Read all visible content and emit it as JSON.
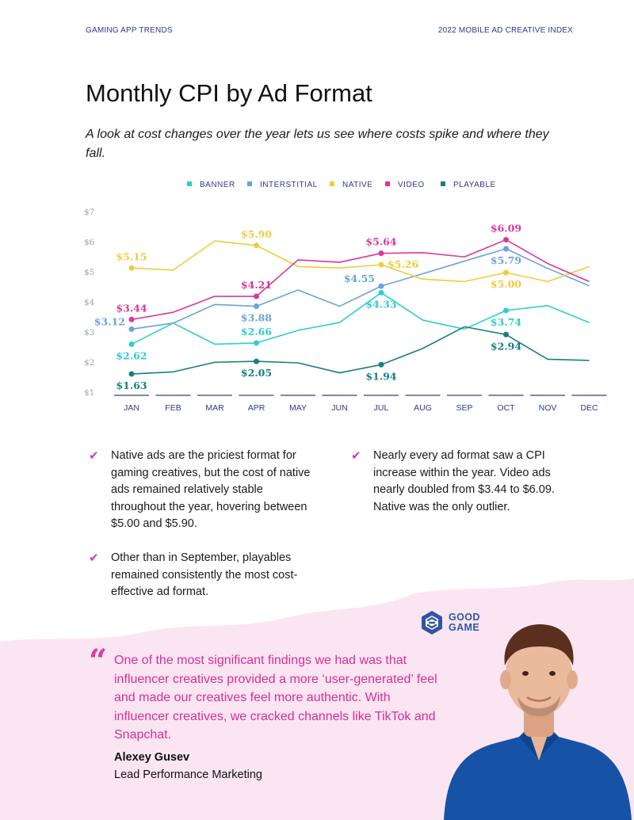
{
  "header": {
    "left": "GAMING APP TRENDS",
    "right": "2022 MOBILE AD CREATIVE INDEX"
  },
  "title": "Monthly CPI by Ad Format",
  "subtitle": "A look at cost changes over the year lets us see where costs spike and where they fall.",
  "chart_data": {
    "type": "line",
    "legend_position": "top-center",
    "grid": false,
    "categories": [
      "JAN",
      "FEB",
      "MAR",
      "APR",
      "MAY",
      "JUN",
      "JUL",
      "AUG",
      "SEP",
      "OCT",
      "NOV",
      "DEC"
    ],
    "y_ticks": [
      "$1",
      "$2",
      "$3",
      "$4",
      "$5",
      "$6",
      "$7"
    ],
    "ylim": [
      1,
      7
    ],
    "series": [
      {
        "name": "BANNER",
        "color": "#2ecdd1",
        "values": [
          2.62,
          3.32,
          2.62,
          2.66,
          3.08,
          3.34,
          4.33,
          3.42,
          3.12,
          3.74,
          3.9,
          3.34
        ],
        "labels": [
          {
            "i": 0,
            "text": "$2.62",
            "pos": "below"
          },
          {
            "i": 3,
            "text": "$2.66",
            "pos": "above"
          },
          {
            "i": 6,
            "text": "$4.33",
            "pos": "below"
          },
          {
            "i": 9,
            "text": "$3.74",
            "pos": "below"
          }
        ]
      },
      {
        "name": "INTERSTITIAL",
        "color": "#6aa3d9",
        "values": [
          3.12,
          3.32,
          3.94,
          3.88,
          4.42,
          3.88,
          4.55,
          4.96,
          5.38,
          5.79,
          5.14,
          4.56
        ],
        "labels": [
          {
            "i": 0,
            "text": "$3.12",
            "pos": "left"
          },
          {
            "i": 3,
            "text": "$3.88",
            "pos": "below"
          },
          {
            "i": 6,
            "text": "$4.55",
            "pos": "left"
          },
          {
            "i": 9,
            "text": "$5.79",
            "pos": "below"
          }
        ]
      },
      {
        "name": "NATIVE",
        "color": "#efcc3d",
        "values": [
          5.15,
          5.08,
          6.05,
          5.9,
          5.2,
          5.15,
          5.26,
          4.78,
          4.7,
          5.0,
          4.7,
          5.2
        ],
        "labels": [
          {
            "i": 0,
            "text": "$5.15",
            "pos": "above"
          },
          {
            "i": 3,
            "text": "$5.90",
            "pos": "above"
          },
          {
            "i": 6,
            "text": "$5.26",
            "pos": "right"
          },
          {
            "i": 9,
            "text": "$5.00",
            "pos": "below"
          }
        ]
      },
      {
        "name": "VIDEO",
        "color": "#d9389d",
        "values": [
          3.44,
          3.68,
          4.21,
          4.21,
          5.42,
          5.34,
          5.64,
          5.66,
          5.52,
          6.09,
          5.3,
          4.7
        ],
        "labels": [
          {
            "i": 0,
            "text": "$3.44",
            "pos": "above"
          },
          {
            "i": 3,
            "text": "$4.21",
            "pos": "above"
          },
          {
            "i": 6,
            "text": "$5.64",
            "pos": "above"
          },
          {
            "i": 9,
            "text": "$6.09",
            "pos": "above"
          }
        ]
      },
      {
        "name": "PLAYABLE",
        "color": "#177f82",
        "values": [
          1.63,
          1.7,
          2.02,
          2.05,
          2.0,
          1.67,
          1.94,
          2.48,
          3.2,
          2.94,
          2.12,
          2.08
        ],
        "labels": [
          {
            "i": 0,
            "text": "$1.63",
            "pos": "below"
          },
          {
            "i": 3,
            "text": "$2.05",
            "pos": "below"
          },
          {
            "i": 6,
            "text": "$1.94",
            "pos": "below"
          },
          {
            "i": 9,
            "text": "$2.94",
            "pos": "below"
          }
        ]
      }
    ]
  },
  "bullets": [
    "Native ads are the priciest format for gaming creatives, but the cost of native ads remained relatively stable throughout the year, hovering between $5.00 and $5.90.",
    "Nearly every ad format saw a CPI increase within the year. Video ads nearly doubled from $3.44 to $6.09. Native was the only outlier.",
    "Other than in September, playables remained consistently the most cost-effective ad format."
  ],
  "logo": {
    "line1": "GOOD",
    "line2": "GAME",
    "color": "#2f56a6"
  },
  "quote": {
    "mark": "“",
    "text": "One of the most significant findings we had was that influencer creatives provided a more ‘user-generated’ feel and made our creatives feel more authentic. With influencer creatives, we cracked channels like TikTok and Snapchat.",
    "author": "Alexey Gusev",
    "role": "Lead Performance Marketing"
  },
  "colors": {
    "accent": "#e0389b",
    "quote_bg": "#fce5f2",
    "header": "#2b3a8f",
    "axis_text": "#2b3a8f"
  }
}
